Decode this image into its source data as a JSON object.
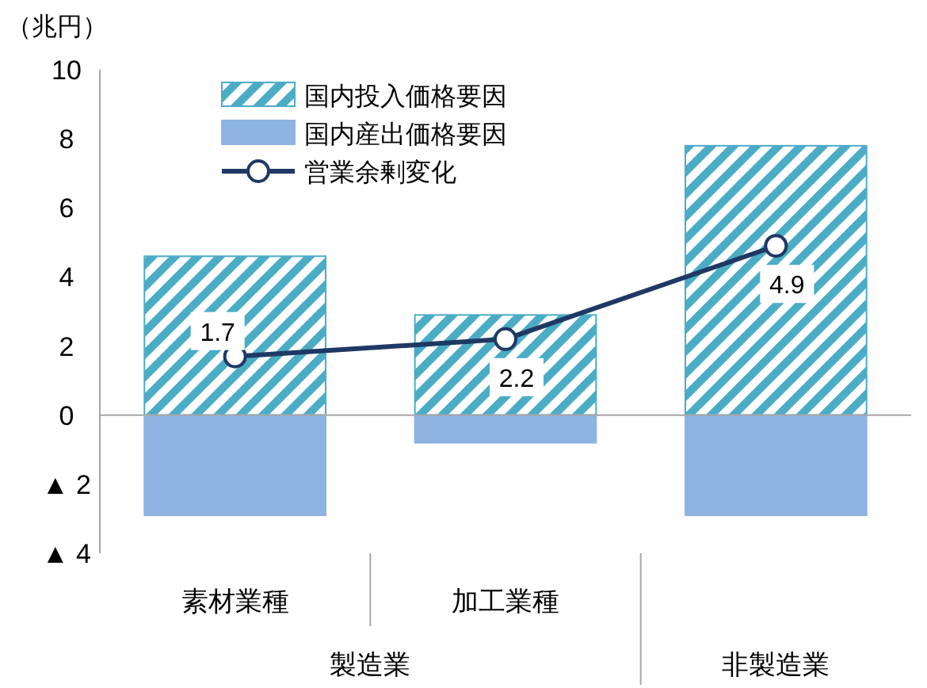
{
  "chart_data": {
    "type": "bar",
    "stacked": true,
    "ylabel": "（兆円）",
    "categories": [
      "素材業種",
      "加工業種",
      null
    ],
    "annotations": [
      "製造業",
      "非製造業"
    ],
    "series": [
      {
        "name": "国内投入価格要因",
        "color": "#4bacc6",
        "values": [
          4.6,
          2.9,
          7.8
        ]
      },
      {
        "name": "国内産出価格要因",
        "color": "#8db3e2",
        "values": [
          -2.9,
          -0.8,
          -2.9
        ]
      },
      {
        "name": "営業余剰変化",
        "type": "line",
        "color": "#1f3864",
        "values": [
          1.7,
          2.2,
          4.9
        ],
        "value_labels": [
          "1.7",
          "2.2",
          "4.9"
        ],
        "marker": "circle"
      }
    ],
    "ylim": [
      -4,
      10
    ],
    "yticks": [
      {
        "value": -4,
        "label": "▲ 4"
      },
      {
        "value": -2,
        "label": "▲ 2"
      },
      0,
      2,
      4,
      6,
      8,
      10
    ],
    "legend": "top"
  }
}
